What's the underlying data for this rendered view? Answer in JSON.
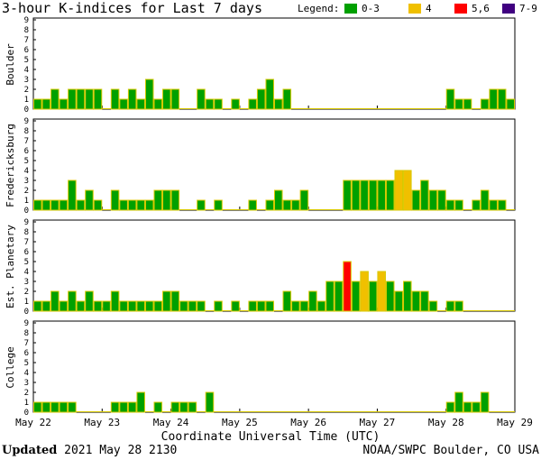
{
  "header": {
    "title": "3-hour K-indices for Last 7 days",
    "legend_label": "Legend:",
    "legend": [
      {
        "label": "0-3",
        "color": "#00a000"
      },
      {
        "label": "4",
        "color": "#f0c000"
      },
      {
        "label": "5,6",
        "color": "#ff0000"
      },
      {
        "label": "7-9",
        "color": "#400080"
      }
    ]
  },
  "chart_data": {
    "type": "bar",
    "x_axis_label": "Coordinate Universal Time (UTC)",
    "x_tick_labels": [
      "May 22",
      "May 23",
      "May 24",
      "May 25",
      "May 26",
      "May 27",
      "May 28",
      "May 29"
    ],
    "y_ticks": [
      "0",
      "1",
      "2",
      "3",
      "4",
      "5",
      "6",
      "7",
      "8",
      "9"
    ],
    "ylim": [
      0,
      9
    ],
    "grid": false,
    "legend_placement": "top-right",
    "colors": {
      "low": "#00a000",
      "k4": "#f0c000",
      "k56": "#ff0000",
      "k79": "#400080",
      "outline": "#d8c800"
    },
    "series": [
      {
        "name": "Boulder",
        "values": [
          1,
          1,
          2,
          1,
          2,
          2,
          2,
          2,
          0,
          2,
          1,
          2,
          1,
          3,
          1,
          2,
          2,
          0,
          0,
          2,
          1,
          1,
          0,
          1,
          0,
          1,
          2,
          3,
          1,
          2,
          0,
          0,
          0,
          0,
          0,
          0,
          0,
          0,
          0,
          0,
          0,
          0,
          0,
          0,
          0,
          0,
          0,
          0,
          2,
          1,
          1,
          0,
          1,
          2,
          2,
          1,
          0
        ]
      },
      {
        "name": "Fredericksburg",
        "values": [
          1,
          1,
          1,
          1,
          3,
          1,
          2,
          1,
          0,
          2,
          1,
          1,
          1,
          1,
          2,
          2,
          2,
          0,
          0,
          1,
          0,
          1,
          0,
          0,
          0,
          1,
          0,
          1,
          2,
          1,
          1,
          2,
          0,
          0,
          0,
          0,
          3,
          3,
          3,
          3,
          3,
          3,
          4,
          4,
          2,
          3,
          2,
          2,
          1,
          1,
          0,
          1,
          2,
          1,
          1,
          0
        ]
      },
      {
        "name": "Est. Planetary",
        "values": [
          1,
          1,
          2,
          1,
          2,
          1,
          2,
          1,
          1,
          2,
          1,
          1,
          1,
          1,
          1,
          2,
          2,
          1,
          1,
          1,
          0,
          1,
          0,
          1,
          0,
          1,
          1,
          1,
          0,
          2,
          1,
          1,
          2,
          1,
          3,
          3,
          5,
          3,
          4,
          3,
          4,
          3,
          2,
          3,
          2,
          2,
          1,
          0,
          1,
          1,
          0,
          0
        ]
      },
      {
        "name": "College",
        "values": [
          1,
          1,
          1,
          1,
          1,
          0,
          0,
          0,
          0,
          1,
          1,
          1,
          2,
          0,
          1,
          0,
          1,
          1,
          1,
          0,
          2,
          0,
          0,
          0,
          0,
          0,
          0,
          0,
          0,
          0,
          0,
          0,
          0,
          0,
          0,
          0,
          0,
          0,
          0,
          0,
          0,
          0,
          0,
          0,
          0,
          0,
          0,
          0,
          1,
          2,
          1,
          1,
          2,
          0,
          0,
          0,
          0
        ]
      }
    ]
  },
  "footer": {
    "updated_label": "Updated",
    "updated_value": "2021 May 28 2130",
    "source": "NOAA/SWPC Boulder, CO USA"
  }
}
